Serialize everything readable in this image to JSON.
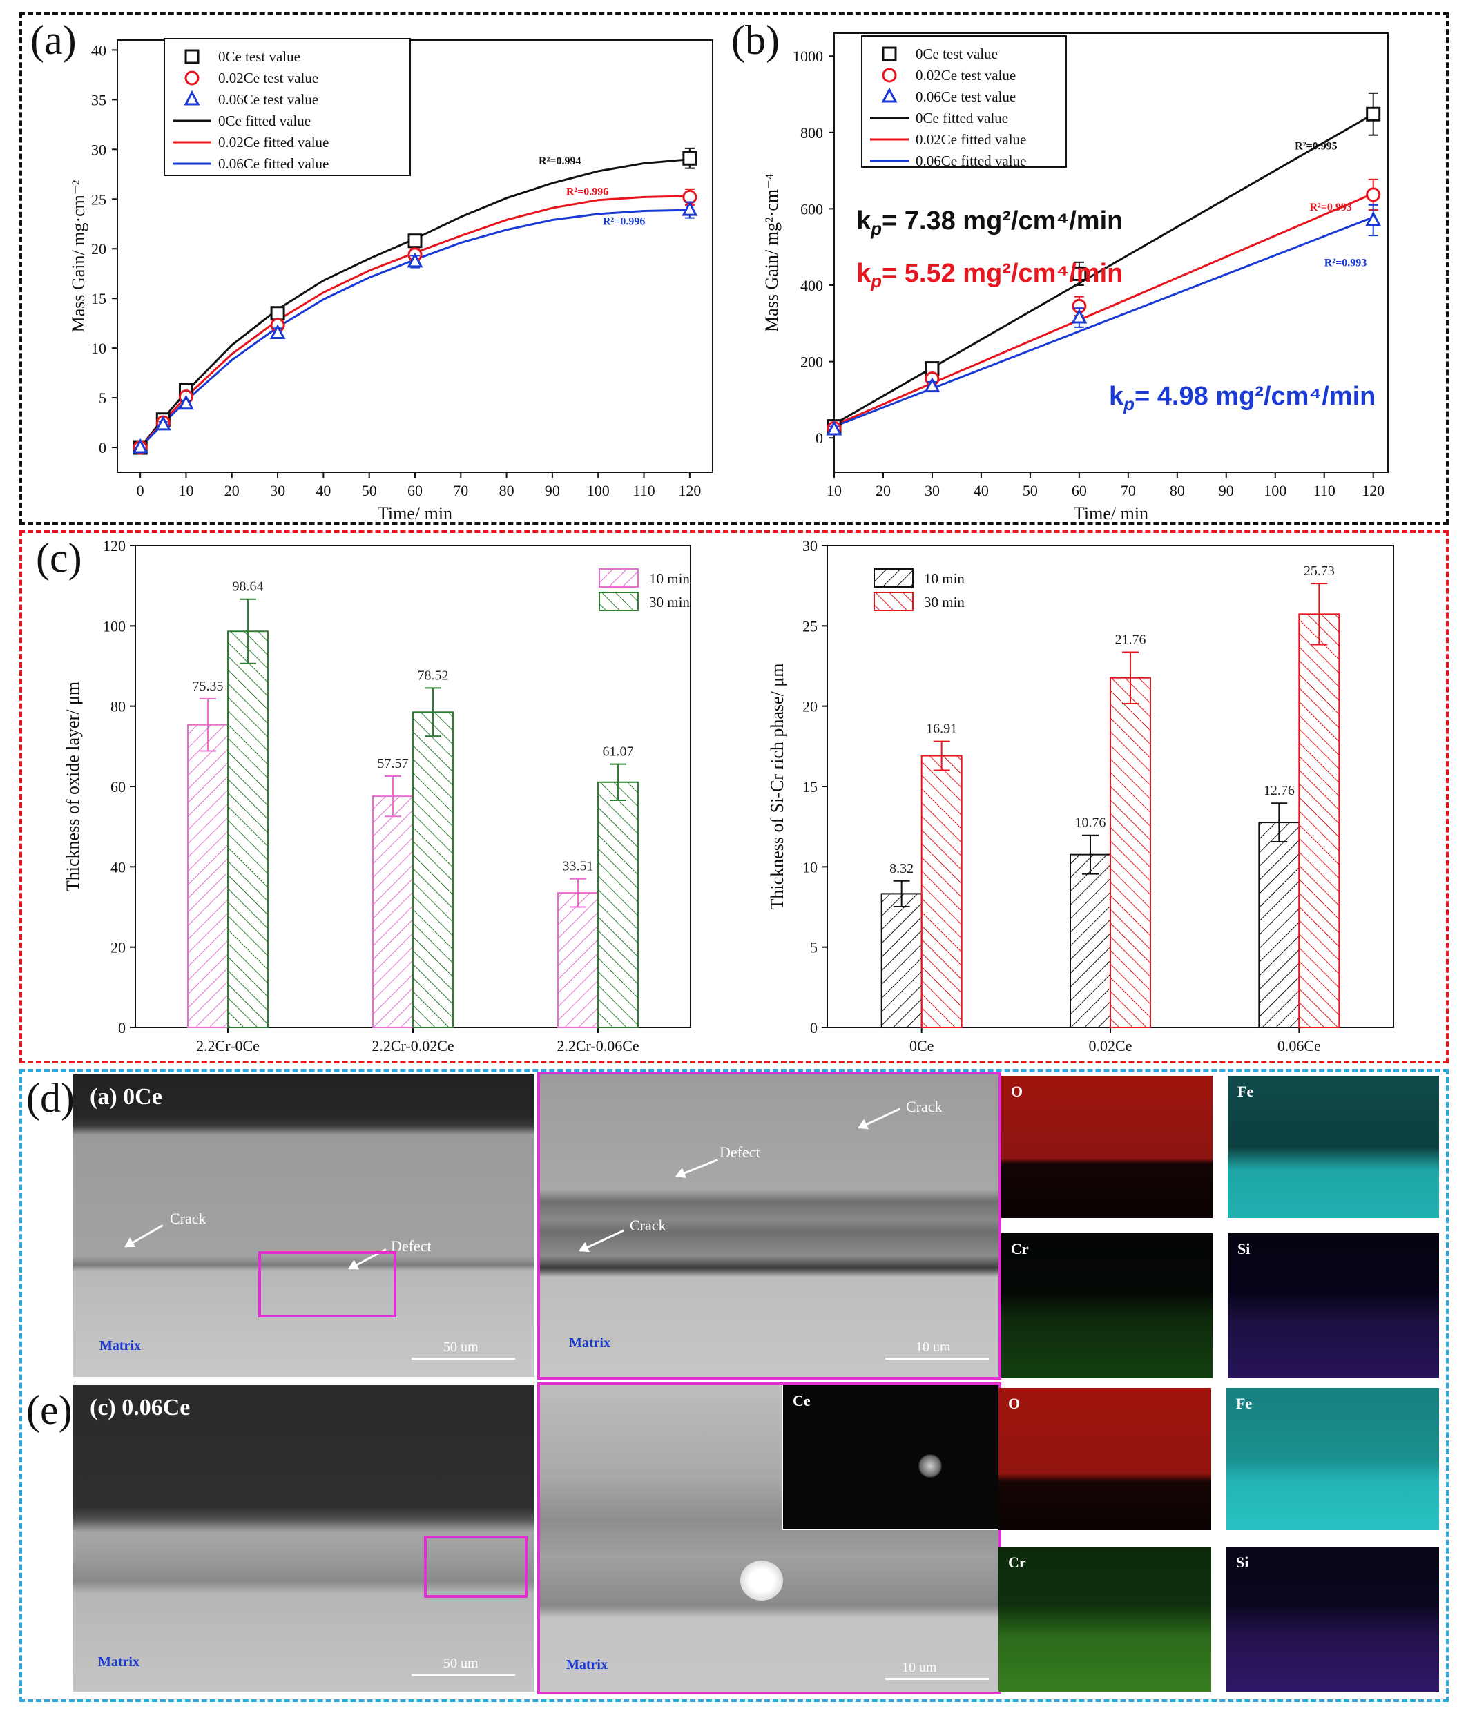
{
  "panels": {
    "a": "(a)",
    "b": "(b)",
    "c": "(c)",
    "d": "(d)",
    "e": "(e)"
  },
  "colors": {
    "black": "#111111",
    "red": "#e8141e",
    "blue": "#1a3ad6",
    "pink": "#e86fcf",
    "green": "#2e7d32",
    "section_black": "#111111",
    "section_red": "#e8141e",
    "section_blue": "#29a8e0",
    "magenta": "#e030d0"
  },
  "chart_data": [
    {
      "type": "line",
      "panel": "(a)",
      "xlabel": "Time/ min",
      "ylabel": "Mass Gain/ mg·cm⁻²",
      "xlim": [
        -5,
        125
      ],
      "ylim": [
        -2.5,
        41
      ],
      "xticks": [
        0,
        10,
        20,
        30,
        40,
        50,
        60,
        70,
        80,
        90,
        100,
        110,
        120
      ],
      "yticks": [
        0,
        5,
        10,
        15,
        20,
        25,
        30,
        35,
        40
      ],
      "legend_position": "top-left",
      "legend": [
        "0Ce test value",
        "0.02Ce test value",
        "0.06Ce test value",
        "0Ce fitted value",
        "0.02Ce fitted value",
        "0.06Ce fitted value"
      ],
      "series": [
        {
          "name": "0Ce test value",
          "marker": "square",
          "color": "#111111",
          "x": [
            0,
            5,
            10,
            30,
            60,
            120
          ],
          "y": [
            0,
            2.8,
            5.8,
            13.5,
            20.8,
            29.1
          ],
          "err": [
            0,
            0.3,
            0.3,
            0.6,
            0.6,
            1.0
          ]
        },
        {
          "name": "0.02Ce test value",
          "marker": "circle",
          "color": "#e8141e",
          "x": [
            0,
            5,
            10,
            30,
            60,
            120
          ],
          "y": [
            0,
            2.5,
            5.1,
            12.3,
            19.4,
            25.2
          ],
          "err": [
            0,
            0.3,
            0.3,
            0.5,
            0.6,
            0.8
          ]
        },
        {
          "name": "0.06Ce test value",
          "marker": "triangle",
          "color": "#1a3ad6",
          "x": [
            0,
            5,
            10,
            30,
            60,
            120
          ],
          "y": [
            0,
            2.3,
            4.4,
            11.5,
            18.7,
            23.9
          ],
          "err": [
            0,
            0.3,
            0.3,
            0.5,
            0.6,
            0.8
          ]
        },
        {
          "name": "0Ce fitted value",
          "line": true,
          "color": "#111111",
          "x": [
            0,
            5,
            10,
            20,
            30,
            40,
            50,
            60,
            70,
            80,
            90,
            100,
            110,
            120
          ],
          "y": [
            0,
            2.9,
            5.6,
            10.3,
            13.9,
            16.8,
            19.0,
            21.0,
            23.2,
            25.1,
            26.6,
            27.8,
            28.6,
            29.0
          ]
        },
        {
          "name": "0.02Ce fitted value",
          "line": true,
          "color": "#e8141e",
          "x": [
            0,
            5,
            10,
            20,
            30,
            40,
            50,
            60,
            70,
            80,
            90,
            100,
            110,
            120
          ],
          "y": [
            0,
            2.6,
            5.1,
            9.4,
            12.8,
            15.6,
            17.8,
            19.6,
            21.3,
            22.9,
            24.1,
            24.9,
            25.2,
            25.3
          ]
        },
        {
          "name": "0.06Ce fitted value",
          "line": true,
          "color": "#1a3ad6",
          "x": [
            0,
            5,
            10,
            20,
            30,
            40,
            50,
            60,
            70,
            80,
            90,
            100,
            110,
            120
          ],
          "y": [
            0,
            2.4,
            4.7,
            8.8,
            12.1,
            14.9,
            17.1,
            18.9,
            20.6,
            21.9,
            22.9,
            23.5,
            23.8,
            23.9
          ]
        }
      ],
      "annotations": [
        {
          "text": "R²=0.994",
          "x": 87,
          "y": 28.5,
          "color": "#111111"
        },
        {
          "text": "R²=0.996",
          "x": 93,
          "y": 25.4,
          "color": "#e8141e"
        },
        {
          "text": "R²=0.996",
          "x": 101,
          "y": 22.4,
          "color": "#1a3ad6"
        }
      ]
    },
    {
      "type": "line",
      "panel": "(b)",
      "xlabel": "Time/ min",
      "ylabel": "Mass Gain/ mg²·cm⁻⁴",
      "xlim": [
        10,
        123
      ],
      "ylim": [
        -90,
        1060
      ],
      "xticks": [
        10,
        20,
        30,
        40,
        50,
        60,
        70,
        80,
        90,
        100,
        110,
        120
      ],
      "yticks": [
        0,
        200,
        400,
        600,
        800,
        1000
      ],
      "legend_position": "top-left",
      "legend": [
        "0Ce test value",
        "0.02Ce test value",
        "0.06Ce test value",
        "0Ce fitted value",
        "0.02Ce fitted value",
        "0.06Ce fitted value"
      ],
      "series": [
        {
          "name": "0Ce test value",
          "marker": "square",
          "color": "#111111",
          "x": [
            10,
            30,
            60,
            120
          ],
          "y": [
            30,
            182,
            430,
            848
          ],
          "err": [
            8,
            12,
            30,
            55
          ]
        },
        {
          "name": "0.02Ce test value",
          "marker": "circle",
          "color": "#e8141e",
          "x": [
            10,
            30,
            60,
            120
          ],
          "y": [
            25,
            155,
            345,
            637
          ],
          "err": [
            8,
            12,
            25,
            40
          ]
        },
        {
          "name": "0.06Ce test value",
          "marker": "triangle",
          "color": "#1a3ad6",
          "x": [
            10,
            30,
            60,
            120
          ],
          "y": [
            22,
            135,
            315,
            570
          ],
          "err": [
            8,
            12,
            25,
            40
          ]
        },
        {
          "name": "0Ce fitted value",
          "line": true,
          "color": "#111111",
          "x": [
            10,
            120
          ],
          "y": [
            36,
            848
          ]
        },
        {
          "name": "0.02Ce fitted value",
          "line": true,
          "color": "#e8141e",
          "x": [
            10,
            120
          ],
          "y": [
            33,
            640
          ]
        },
        {
          "name": "0.06Ce fitted value",
          "line": true,
          "color": "#1a3ad6",
          "x": [
            10,
            120
          ],
          "y": [
            30,
            578
          ]
        }
      ],
      "annotations": [
        {
          "text": "R²=0.995",
          "x": 104,
          "y": 755,
          "color": "#111111"
        },
        {
          "text": "R²=0.993",
          "x": 107,
          "y": 595,
          "color": "#e8141e"
        },
        {
          "text": "R²=0.993",
          "x": 110,
          "y": 450,
          "color": "#1a3ad6"
        }
      ],
      "kp_labels": [
        {
          "text": "kp= 7.38 mg²/cm⁴/min",
          "color": "#111111"
        },
        {
          "text": "kp= 5.52 mg²/cm⁴/min",
          "color": "#e8141e"
        },
        {
          "text": "kp= 4.98 mg²/cm⁴/min",
          "color": "#1a3ad6"
        }
      ]
    },
    {
      "type": "bar",
      "panel": "(c)",
      "ylabel": "Thickness of oxide layer/ μm",
      "xlabel": "",
      "ylim": [
        0,
        120
      ],
      "yticks": [
        0,
        20,
        40,
        60,
        80,
        100,
        120
      ],
      "categories": [
        "2.2Cr-0Ce",
        "2.2Cr-0.02Ce",
        "2.2Cr-0.06Ce"
      ],
      "legend_position": "top-right",
      "series": [
        {
          "name": "10 min",
          "color": "#e86fcf",
          "values": [
            75.35,
            57.57,
            33.51
          ],
          "err": [
            6.5,
            5.0,
            3.5
          ]
        },
        {
          "name": "30 min",
          "color": "#2e7d32",
          "values": [
            98.64,
            78.52,
            61.07
          ],
          "err": [
            8.0,
            6.0,
            4.5
          ]
        }
      ],
      "data_labels": [
        [
          "75.35",
          "57.57",
          "33.51"
        ],
        [
          "98.64",
          "78.52",
          "61.07"
        ]
      ]
    },
    {
      "type": "bar",
      "panel": "(c) right",
      "ylabel": "Thickness of Si-Cr rich phase/ μm",
      "xlabel": "",
      "ylim": [
        0,
        30
      ],
      "yticks": [
        0,
        5,
        10,
        15,
        20,
        25,
        30
      ],
      "categories": [
        "0Ce",
        "0.02Ce",
        "0.06Ce"
      ],
      "legend_position": "top-left",
      "series": [
        {
          "name": "10 min",
          "color": "#111111",
          "values": [
            8.32,
            10.76,
            12.76
          ],
          "err": [
            0.8,
            1.2,
            1.2
          ]
        },
        {
          "name": "30 min",
          "color": "#e8141e",
          "values": [
            16.91,
            21.76,
            25.73
          ],
          "err": [
            0.9,
            1.6,
            1.9
          ]
        }
      ],
      "data_labels": [
        [
          "8.32",
          "10.76",
          "12.76"
        ],
        [
          "16.91",
          "21.76",
          "25.73"
        ]
      ]
    }
  ],
  "micro": {
    "d_title": "(a) 0Ce",
    "e_title": "(c) 0.06Ce",
    "matrix": "Matrix",
    "crack": "Crack",
    "defect": "Defect",
    "scale_50": "50 um",
    "scale_10": "10 um",
    "maps": {
      "O": "O",
      "Fe": "Fe",
      "Cr": "Cr",
      "Si": "Si",
      "Ce": "Ce"
    },
    "map_colors": {
      "O": "#a0140e",
      "Fe": "#1ea5a5",
      "Cr": "#1f6b1a",
      "Si": "#3a1870",
      "Ce": "#e0e0e0"
    }
  }
}
